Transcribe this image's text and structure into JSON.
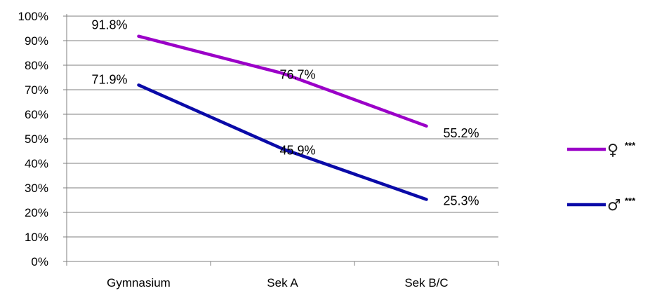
{
  "chart_data": {
    "type": "line",
    "categories": [
      "Gymnasium",
      "Sek A",
      "Sek B/C"
    ],
    "ylim": [
      0,
      100
    ],
    "yticks": [
      "0%",
      "10%",
      "20%",
      "30%",
      "40%",
      "50%",
      "60%",
      "70%",
      "80%",
      "90%",
      "100%"
    ],
    "grid": true,
    "legend_position": "right",
    "series": [
      {
        "name": "♀",
        "suffix": "***",
        "color": "#9B00C8",
        "values": [
          91.8,
          76.7,
          55.2
        ],
        "labels": [
          "91.8%",
          "76.7%",
          "55.2%"
        ]
      },
      {
        "name": "♂",
        "suffix": "***",
        "color": "#0A0AA8",
        "values": [
          71.9,
          45.9,
          25.3
        ],
        "labels": [
          "71.9%",
          "45.9%",
          "25.3%"
        ]
      }
    ]
  }
}
